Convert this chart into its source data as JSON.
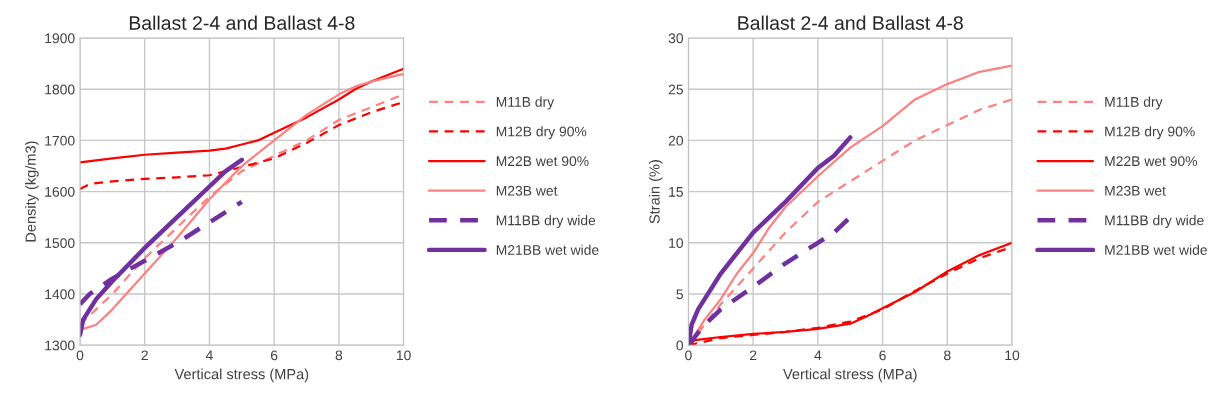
{
  "chart_data": [
    {
      "type": "line",
      "title": "Ballast 2-4 and Ballast 4-8",
      "xlabel": "Vertical stress (MPa)",
      "ylabel": "Density (kg/m3)",
      "xlim": [
        0,
        10
      ],
      "ylim": [
        1300,
        1900
      ],
      "xticks": [
        0,
        2,
        4,
        6,
        8,
        10
      ],
      "yticks": [
        1300,
        1400,
        1500,
        1600,
        1700,
        1800,
        1900
      ],
      "grid": true,
      "legend": "right",
      "series": [
        {
          "name": "M11B dry",
          "color": "#ff8080",
          "line_style": "dashed",
          "x": [
            0,
            1,
            2,
            3,
            4,
            5,
            6,
            7,
            8,
            9,
            10
          ],
          "values": [
            1340,
            1400,
            1470,
            1530,
            1590,
            1640,
            1670,
            1700,
            1740,
            1765,
            1790
          ]
        },
        {
          "name": "M12B dry 90%",
          "color": "#ff0000",
          "line_style": "dashed",
          "x": [
            0,
            0.3,
            1,
            2,
            3,
            4,
            5,
            6,
            7,
            8,
            9,
            10
          ],
          "values": [
            1605,
            1615,
            1620,
            1625,
            1628,
            1632,
            1648,
            1665,
            1695,
            1730,
            1755,
            1775
          ]
        },
        {
          "name": "M22B wet 90%",
          "color": "#ff0000",
          "line_style": "solid",
          "x": [
            0,
            1,
            2,
            3,
            4,
            4.5,
            5,
            5.5,
            6,
            7,
            8,
            8.5,
            9,
            10
          ],
          "values": [
            1657,
            1665,
            1672,
            1676,
            1680,
            1684,
            1692,
            1700,
            1715,
            1745,
            1780,
            1800,
            1815,
            1840
          ]
        },
        {
          "name": "M23B wet",
          "color": "#ff8080",
          "line_style": "solid",
          "x": [
            0,
            0.5,
            1,
            2,
            3,
            4,
            5,
            6,
            7,
            8,
            8.5,
            9,
            10
          ],
          "values": [
            1330,
            1340,
            1370,
            1440,
            1510,
            1585,
            1650,
            1700,
            1750,
            1790,
            1805,
            1815,
            1830
          ]
        },
        {
          "name": "M11BB dry wide",
          "color": "#7030a0",
          "line_style": "dashed",
          "x": [
            0,
            0.3,
            1,
            2,
            3,
            4,
            5
          ],
          "values": [
            1380,
            1400,
            1430,
            1465,
            1500,
            1540,
            1580
          ]
        },
        {
          "name": "M21BB wet wide",
          "color": "#7030a0",
          "line_style": "solid",
          "x": [
            0,
            0.1,
            0.5,
            1,
            2,
            3,
            4,
            4.5,
            5
          ],
          "values": [
            1320,
            1350,
            1390,
            1425,
            1490,
            1550,
            1610,
            1640,
            1662
          ]
        }
      ]
    },
    {
      "type": "line",
      "title": "Ballast 2-4 and Ballast 4-8",
      "xlabel": "Vertical stress (MPa)",
      "ylabel": "Strain (%)",
      "xlim": [
        0,
        10
      ],
      "ylim": [
        0,
        30
      ],
      "xticks": [
        0,
        2,
        4,
        6,
        8,
        10
      ],
      "yticks": [
        0,
        5,
        10,
        15,
        20,
        25,
        30
      ],
      "grid": true,
      "legend": "right",
      "series": [
        {
          "name": "M11B dry",
          "color": "#ff8080",
          "line_style": "dashed",
          "x": [
            0,
            0.5,
            1,
            2,
            3,
            3.5,
            4,
            5,
            6,
            7,
            8,
            9,
            10
          ],
          "values": [
            0,
            2,
            4,
            7.5,
            11,
            12.5,
            14,
            16,
            18,
            20,
            21.5,
            23,
            24
          ]
        },
        {
          "name": "M12B dry 90%",
          "color": "#ff0000",
          "line_style": "dashed",
          "x": [
            0,
            1,
            2,
            3,
            4,
            5,
            6,
            7,
            8,
            9,
            10
          ],
          "values": [
            0,
            0.7,
            1,
            1.3,
            1.7,
            2.3,
            3.5,
            5.3,
            7,
            8.5,
            9.6
          ]
        },
        {
          "name": "M22B wet 90%",
          "color": "#ff0000",
          "line_style": "solid",
          "x": [
            0,
            0.2,
            1,
            2,
            3,
            4,
            5,
            5.5,
            6,
            7,
            8,
            9,
            10
          ],
          "values": [
            0,
            0.5,
            0.8,
            1.1,
            1.3,
            1.6,
            2.1,
            2.8,
            3.6,
            5.2,
            7.2,
            8.8,
            10
          ]
        },
        {
          "name": "M23B wet",
          "color": "#ff8080",
          "line_style": "solid",
          "x": [
            0,
            0.5,
            1,
            1.5,
            2,
            2.5,
            3,
            4,
            5,
            6,
            7,
            8,
            9,
            10
          ],
          "values": [
            0,
            2.5,
            4.5,
            7,
            9,
            11.5,
            13.5,
            16.5,
            19.3,
            21.4,
            24,
            25.5,
            26.7,
            27.3
          ]
        },
        {
          "name": "M11BB dry wide",
          "color": "#7030a0",
          "line_style": "dashed",
          "x": [
            0,
            0.25,
            0.5,
            1,
            2,
            3,
            4,
            4.5,
            5
          ],
          "values": [
            0,
            1,
            2,
            3.5,
            5.7,
            8,
            10,
            11,
            12.5
          ]
        },
        {
          "name": "M21BB wet wide",
          "color": "#7030a0",
          "line_style": "solid",
          "x": [
            0,
            0.1,
            0.3,
            0.5,
            1,
            1.5,
            2,
            3,
            4,
            4.5,
            5
          ],
          "values": [
            0,
            2,
            3.5,
            4.5,
            7,
            9,
            11,
            14,
            17.3,
            18.5,
            20.3
          ]
        }
      ]
    }
  ]
}
